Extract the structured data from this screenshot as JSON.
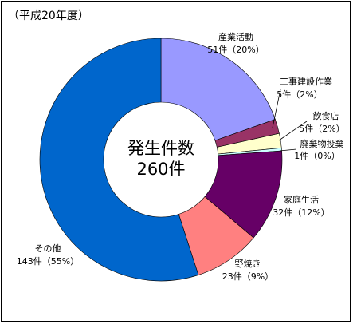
{
  "chart_data": {
    "type": "donut",
    "title": "（平成20年度）",
    "center_texts": [
      "発生件数",
      "260件"
    ],
    "categories": [
      "産業活動",
      "工事建設作業",
      "飲食店",
      "廃棄物投棄",
      "家庭生活",
      "野焼き",
      "その他"
    ],
    "values": [
      51,
      5,
      5,
      1,
      32,
      23,
      143
    ],
    "value_labels": [
      "51件（20%）",
      "5件（2%）",
      "5件（2%）",
      "1件（0%）",
      "32件（12%）",
      "23件（9%）",
      "143件（55%）"
    ],
    "colors": [
      "#9999ff",
      "#993366",
      "#ffffcc",
      "#ccffff",
      "#660066",
      "#ff8080",
      "#0066cc"
    ]
  }
}
